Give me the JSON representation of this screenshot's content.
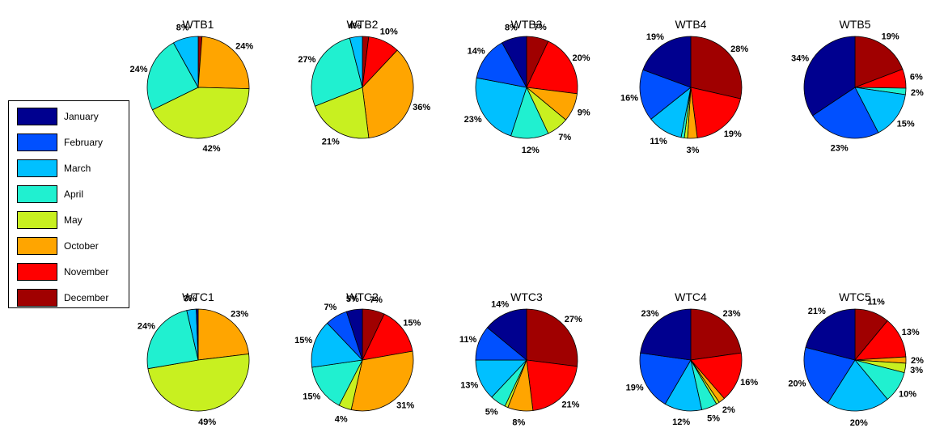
{
  "legend": {
    "items": [
      {
        "label": "January",
        "color": "#00008F"
      },
      {
        "label": "February",
        "color": "#0050FF"
      },
      {
        "label": "March",
        "color": "#00C0FF"
      },
      {
        "label": "April",
        "color": "#20F0D0"
      },
      {
        "label": "May",
        "color": "#C8F020"
      },
      {
        "label": "October",
        "color": "#FFA500"
      },
      {
        "label": "November",
        "color": "#FF0000"
      },
      {
        "label": "December",
        "color": "#A00000"
      }
    ]
  },
  "chart_data": [
    {
      "type": "pie",
      "title": "WTB1",
      "slices": [
        {
          "category": "January",
          "value": 0
        },
        {
          "category": "February",
          "value": 0
        },
        {
          "category": "March",
          "value": 8,
          "label": "8%"
        },
        {
          "category": "April",
          "value": 24,
          "label": "24%"
        },
        {
          "category": "May",
          "value": 42,
          "label": "42%"
        },
        {
          "category": "October",
          "value": 24,
          "label": "24%"
        },
        {
          "category": "November",
          "value": 0
        },
        {
          "category": "December",
          "value": 1.2
        }
      ]
    },
    {
      "type": "pie",
      "title": "WTB2",
      "slices": [
        {
          "category": "January",
          "value": 0
        },
        {
          "category": "February",
          "value": 0
        },
        {
          "category": "March",
          "value": 4,
          "label": "4%"
        },
        {
          "category": "April",
          "value": 27,
          "label": "27%"
        },
        {
          "category": "May",
          "value": 21,
          "label": "21%"
        },
        {
          "category": "October",
          "value": 36,
          "label": "36%"
        },
        {
          "category": "November",
          "value": 10,
          "label": "10%"
        },
        {
          "category": "December",
          "value": 2
        }
      ]
    },
    {
      "type": "pie",
      "title": "WTB3",
      "slices": [
        {
          "category": "January",
          "value": 8,
          "label": "8%"
        },
        {
          "category": "February",
          "value": 14,
          "label": "14%"
        },
        {
          "category": "March",
          "value": 23,
          "label": "23%"
        },
        {
          "category": "April",
          "value": 12,
          "label": "12%"
        },
        {
          "category": "May",
          "value": 7,
          "label": "7%"
        },
        {
          "category": "October",
          "value": 9,
          "label": "9%"
        },
        {
          "category": "November",
          "value": 20,
          "label": "20%"
        },
        {
          "category": "December",
          "value": 7,
          "label": "7%"
        }
      ]
    },
    {
      "type": "pie",
      "title": "WTB4",
      "slices": [
        {
          "category": "January",
          "value": 19,
          "label": "19%"
        },
        {
          "category": "February",
          "value": 16,
          "label": "16%"
        },
        {
          "category": "March",
          "value": 11,
          "label": "11%"
        },
        {
          "category": "April",
          "value": 1
        },
        {
          "category": "May",
          "value": 1
        },
        {
          "category": "October",
          "value": 3,
          "label": "3%"
        },
        {
          "category": "November",
          "value": 19,
          "label": "19%"
        },
        {
          "category": "December",
          "value": 28,
          "label": "28%"
        }
      ]
    },
    {
      "type": "pie",
      "title": "WTB5",
      "slices": [
        {
          "category": "January",
          "value": 34,
          "label": "34%"
        },
        {
          "category": "February",
          "value": 23,
          "label": "23%"
        },
        {
          "category": "March",
          "value": 15,
          "label": "15%"
        },
        {
          "category": "April",
          "value": 2,
          "label": "2%"
        },
        {
          "category": "May",
          "value": 0
        },
        {
          "category": "October",
          "value": 0
        },
        {
          "category": "November",
          "value": 6,
          "label": "6%"
        },
        {
          "category": "December",
          "value": 19,
          "label": "19%"
        }
      ]
    },
    {
      "type": "pie",
      "title": "WTC1",
      "slices": [
        {
          "category": "January",
          "value": 0.6
        },
        {
          "category": "February",
          "value": 0
        },
        {
          "category": "March",
          "value": 3,
          "label": "3%"
        },
        {
          "category": "April",
          "value": 24,
          "label": "24%"
        },
        {
          "category": "May",
          "value": 49,
          "label": "49%"
        },
        {
          "category": "October",
          "value": 23,
          "label": "23%"
        },
        {
          "category": "November",
          "value": 0
        },
        {
          "category": "December",
          "value": 0
        }
      ]
    },
    {
      "type": "pie",
      "title": "WTC2",
      "slices": [
        {
          "category": "January",
          "value": 5,
          "label": "5%"
        },
        {
          "category": "February",
          "value": 7,
          "label": "7%"
        },
        {
          "category": "March",
          "value": 15,
          "label": "15%"
        },
        {
          "category": "April",
          "value": 15,
          "label": "15%"
        },
        {
          "category": "May",
          "value": 4,
          "label": "4%"
        },
        {
          "category": "October",
          "value": 31,
          "label": "31%"
        },
        {
          "category": "November",
          "value": 15,
          "label": "15%"
        },
        {
          "category": "December",
          "value": 7,
          "label": "7%"
        }
      ]
    },
    {
      "type": "pie",
      "title": "WTC3",
      "slices": [
        {
          "category": "January",
          "value": 14,
          "label": "14%"
        },
        {
          "category": "February",
          "value": 11,
          "label": "11%"
        },
        {
          "category": "March",
          "value": 13,
          "label": "13%"
        },
        {
          "category": "April",
          "value": 5,
          "label": "5%"
        },
        {
          "category": "May",
          "value": 1
        },
        {
          "category": "October",
          "value": 8,
          "label": "8%"
        },
        {
          "category": "November",
          "value": 21,
          "label": "21%"
        },
        {
          "category": "December",
          "value": 27,
          "label": "27%"
        }
      ]
    },
    {
      "type": "pie",
      "title": "WTC4",
      "slices": [
        {
          "category": "January",
          "value": 23,
          "label": "23%"
        },
        {
          "category": "February",
          "value": 19,
          "label": "19%"
        },
        {
          "category": "March",
          "value": 12,
          "label": "12%"
        },
        {
          "category": "April",
          "value": 5,
          "label": "5%"
        },
        {
          "category": "May",
          "value": 1
        },
        {
          "category": "October",
          "value": 2,
          "label": "2%"
        },
        {
          "category": "November",
          "value": 16,
          "label": "16%"
        },
        {
          "category": "December",
          "value": 23,
          "label": "23%"
        }
      ]
    },
    {
      "type": "pie",
      "title": "WTC5",
      "slices": [
        {
          "category": "January",
          "value": 21,
          "label": "21%"
        },
        {
          "category": "February",
          "value": 20,
          "label": "20%"
        },
        {
          "category": "March",
          "value": 20,
          "label": "20%"
        },
        {
          "category": "April",
          "value": 10,
          "label": "10%"
        },
        {
          "category": "May",
          "value": 3,
          "label": "3%"
        },
        {
          "category": "October",
          "value": 2,
          "label": "2%"
        },
        {
          "category": "November",
          "value": 13,
          "label": "13%"
        },
        {
          "category": "December",
          "value": 11,
          "label": "11%"
        }
      ]
    }
  ]
}
